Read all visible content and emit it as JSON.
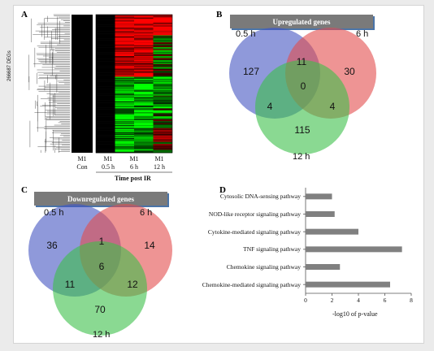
{
  "panels": {
    "a": {
      "label": "A",
      "genes_axis": "266687 DEGs",
      "samples": [
        {
          "name": "M1",
          "sub": "Con"
        },
        {
          "name": "M1",
          "sub": "0.5 h"
        },
        {
          "name": "M1",
          "sub": "6 h"
        },
        {
          "name": "M1",
          "sub": "12 h"
        }
      ],
      "time_label": "Time post IR"
    },
    "b": {
      "label": "B",
      "banner": "Upregulated genes",
      "sets": [
        "0.5 h",
        "6 h",
        "12 h"
      ],
      "counts": {
        "a_only": "127",
        "ab": "11",
        "b_only": "30",
        "abc": "0",
        "ac": "4",
        "bc": "4",
        "c_only": "115"
      }
    },
    "c": {
      "label": "C",
      "banner": "Downregulated genes",
      "sets": [
        "0.5 h",
        "6 h",
        "12 h"
      ],
      "counts": {
        "a_only": "36",
        "ab": "1",
        "b_only": "14",
        "abc": "6",
        "ac": "11",
        "bc": "12",
        "c_only": "70"
      }
    },
    "d": {
      "label": "D",
      "xlabel": "-log10 of p-value"
    }
  },
  "colors": {
    "set1": "#4455c2",
    "set2": "#e24c4c",
    "set3": "#3cbf4a",
    "bar": "#808080",
    "banner": "#7a7a7a"
  },
  "chart_data": {
    "type": "bar",
    "orientation": "horizontal",
    "categories": [
      "Cytosolic DNA-sensing pathway",
      "NOD-like receptor signaling pathway",
      "Cytokine-mediated signaling pathway",
      "TNF signaling pathway",
      "Chemokine signaling pathway",
      "Chemokine-mediated signaling pathway"
    ],
    "values": [
      2.0,
      2.2,
      4.0,
      7.3,
      2.6,
      6.4
    ],
    "xlabel": "-log10 of p-value",
    "xlim": [
      0,
      8
    ],
    "xticks": [
      "0",
      "2",
      "4",
      "6",
      "8"
    ]
  }
}
